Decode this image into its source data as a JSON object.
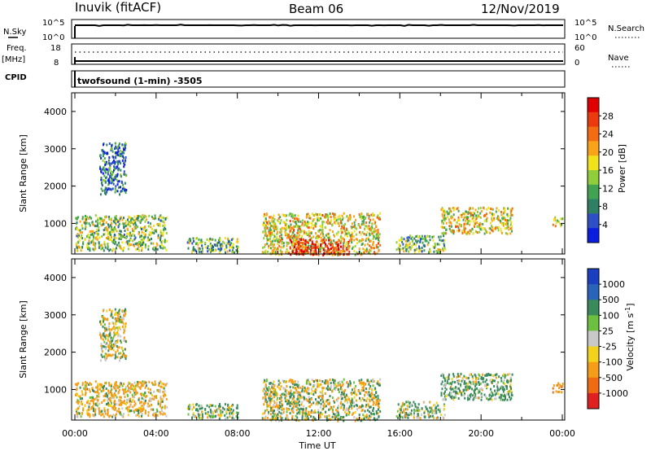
{
  "header": {
    "radar": "Inuvik (fitACF)",
    "beam": "Beam 06",
    "date": "12/Nov/2019"
  },
  "strip_nsky": {
    "left_label": "N.Sky",
    "right_label": "N.Search",
    "ticks_left": [
      "10^5",
      "10^0"
    ],
    "ticks_right": [
      "10^5",
      "10^0"
    ]
  },
  "strip_freq": {
    "left_label_1": "Freq.",
    "left_label_2": "[MHz]",
    "right_label": "Nave",
    "ticks_left": [
      "18",
      "8"
    ],
    "ticks_right": [
      "60",
      "0"
    ]
  },
  "cpid": {
    "label": "CPID",
    "program": "twofsound (1-min) -3505"
  },
  "chart_data": [
    {
      "type": "heatmap",
      "title": "",
      "ylabel": "Slant Range [km]",
      "ylim": [
        180,
        4500
      ],
      "yticks": [
        "1000",
        "2000",
        "3000",
        "4000"
      ],
      "xlabel": "Time UT",
      "x_ticks": [
        "00:00",
        "04:00",
        "08:00",
        "12:00",
        "16:00",
        "20:00",
        "00:00"
      ],
      "colorbar": {
        "label": "Power [dB]",
        "range": [
          0,
          32
        ],
        "tick_labels": [
          "4",
          "8",
          "12",
          "16",
          "20",
          "24",
          "28"
        ],
        "colors": [
          "#0a1ee0",
          "#2f4fc7",
          "#2f7f65",
          "#41a351",
          "#8fcd3b",
          "#f2e21a",
          "#f9a319",
          "#f36c12",
          "#ea3a0e",
          "#e00000"
        ]
      },
      "regions": [
        {
          "t": [
            0.0,
            4.5
          ],
          "range": [
            300,
            1250
          ],
          "level_db": 14
        },
        {
          "t": [
            1.2,
            2.5
          ],
          "range": [
            1800,
            3200
          ],
          "level_db": 6
        },
        {
          "t": [
            5.5,
            8.0
          ],
          "range": [
            250,
            650
          ],
          "level_db": 12
        },
        {
          "t": [
            9.2,
            15.0
          ],
          "range": [
            180,
            1300
          ],
          "level_db": 18
        },
        {
          "t": [
            10.5,
            13.5
          ],
          "range": [
            180,
            600
          ],
          "level_db": 28
        },
        {
          "t": [
            15.8,
            18.2
          ],
          "range": [
            250,
            700
          ],
          "level_db": 12
        },
        {
          "t": [
            18.0,
            21.5
          ],
          "range": [
            750,
            1450
          ],
          "level_db": 18
        },
        {
          "t": [
            23.5,
            24.0
          ],
          "range": [
            950,
            1200
          ],
          "level_db": 16
        }
      ]
    },
    {
      "type": "heatmap",
      "title": "",
      "ylabel": "Slant Range [km]",
      "ylim": [
        180,
        4500
      ],
      "yticks": [
        "1000",
        "2000",
        "3000",
        "4000"
      ],
      "xlabel": "Time UT",
      "x_ticks": [
        "00:00",
        "04:00",
        "08:00",
        "12:00",
        "16:00",
        "20:00",
        "00:00"
      ],
      "colorbar": {
        "label": "Velocity [m s^-1]",
        "tick_labels": [
          "1000",
          "500",
          "100",
          "25",
          "-25",
          "-100",
          "-500",
          "-1000"
        ],
        "colors": [
          "#1a3fbf",
          "#2a64b8",
          "#3a8a5c",
          "#6dbf3f",
          "#c8c8c8",
          "#f2d21a",
          "#f59d17",
          "#f06a12",
          "#e02020"
        ]
      },
      "regions": [
        {
          "t": [
            0.0,
            4.5
          ],
          "range": [
            300,
            1250
          ],
          "velocity": -100
        },
        {
          "t": [
            1.2,
            2.5
          ],
          "range": [
            1800,
            3200
          ],
          "velocity": -50
        },
        {
          "t": [
            5.5,
            8.0
          ],
          "range": [
            250,
            650
          ],
          "velocity": 100
        },
        {
          "t": [
            9.2,
            15.0
          ],
          "range": [
            180,
            1300
          ],
          "velocity": 0
        },
        {
          "t": [
            15.8,
            18.2
          ],
          "range": [
            250,
            700
          ],
          "velocity": 50
        },
        {
          "t": [
            18.0,
            21.5
          ],
          "range": [
            750,
            1450
          ],
          "velocity": 100
        },
        {
          "t": [
            23.5,
            24.0
          ],
          "range": [
            950,
            1200
          ],
          "velocity": -200
        }
      ]
    }
  ]
}
